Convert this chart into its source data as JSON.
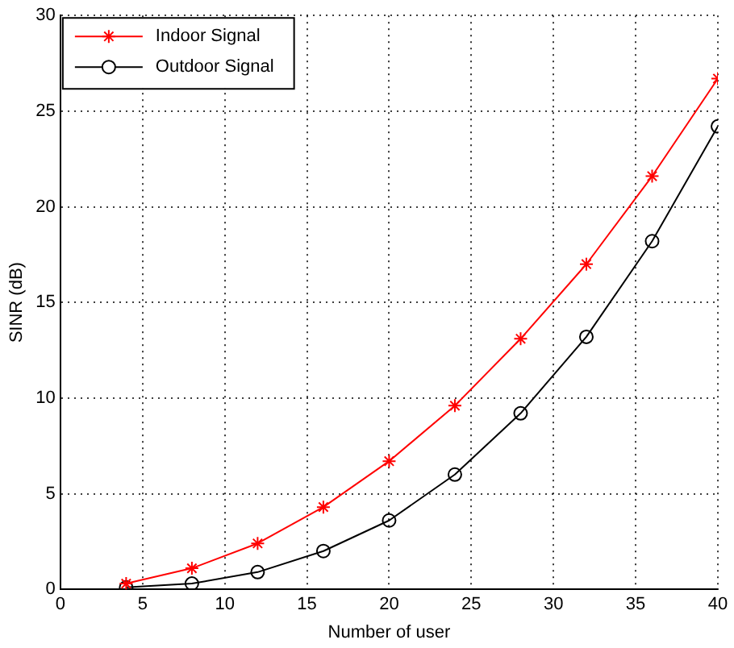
{
  "chart_data": {
    "type": "line",
    "xlabel": "Number of user",
    "ylabel": "SINR (dB)",
    "x": [
      4,
      8,
      12,
      16,
      20,
      24,
      28,
      32,
      36,
      40
    ],
    "series": [
      {
        "name": "Indoor Signal",
        "color": "#ff0000",
        "marker": "cross",
        "values": [
          0.3,
          1.1,
          2.4,
          4.3,
          6.7,
          9.6,
          13.1,
          17.0,
          21.6,
          26.7
        ]
      },
      {
        "name": "Outdoor Signal",
        "color": "#000000",
        "marker": "circle",
        "values": [
          0.1,
          0.3,
          0.9,
          2.0,
          3.6,
          6.0,
          9.2,
          13.2,
          18.2,
          24.2
        ]
      }
    ],
    "xlim": [
      0,
      40
    ],
    "xticks": [
      0,
      5,
      10,
      15,
      20,
      25,
      30,
      35,
      40
    ],
    "ylim": [
      0,
      30
    ],
    "yticks": [
      0,
      5,
      10,
      15,
      20,
      25,
      30
    ],
    "grid": true,
    "legend": "top left",
    "line_style": "solid"
  }
}
